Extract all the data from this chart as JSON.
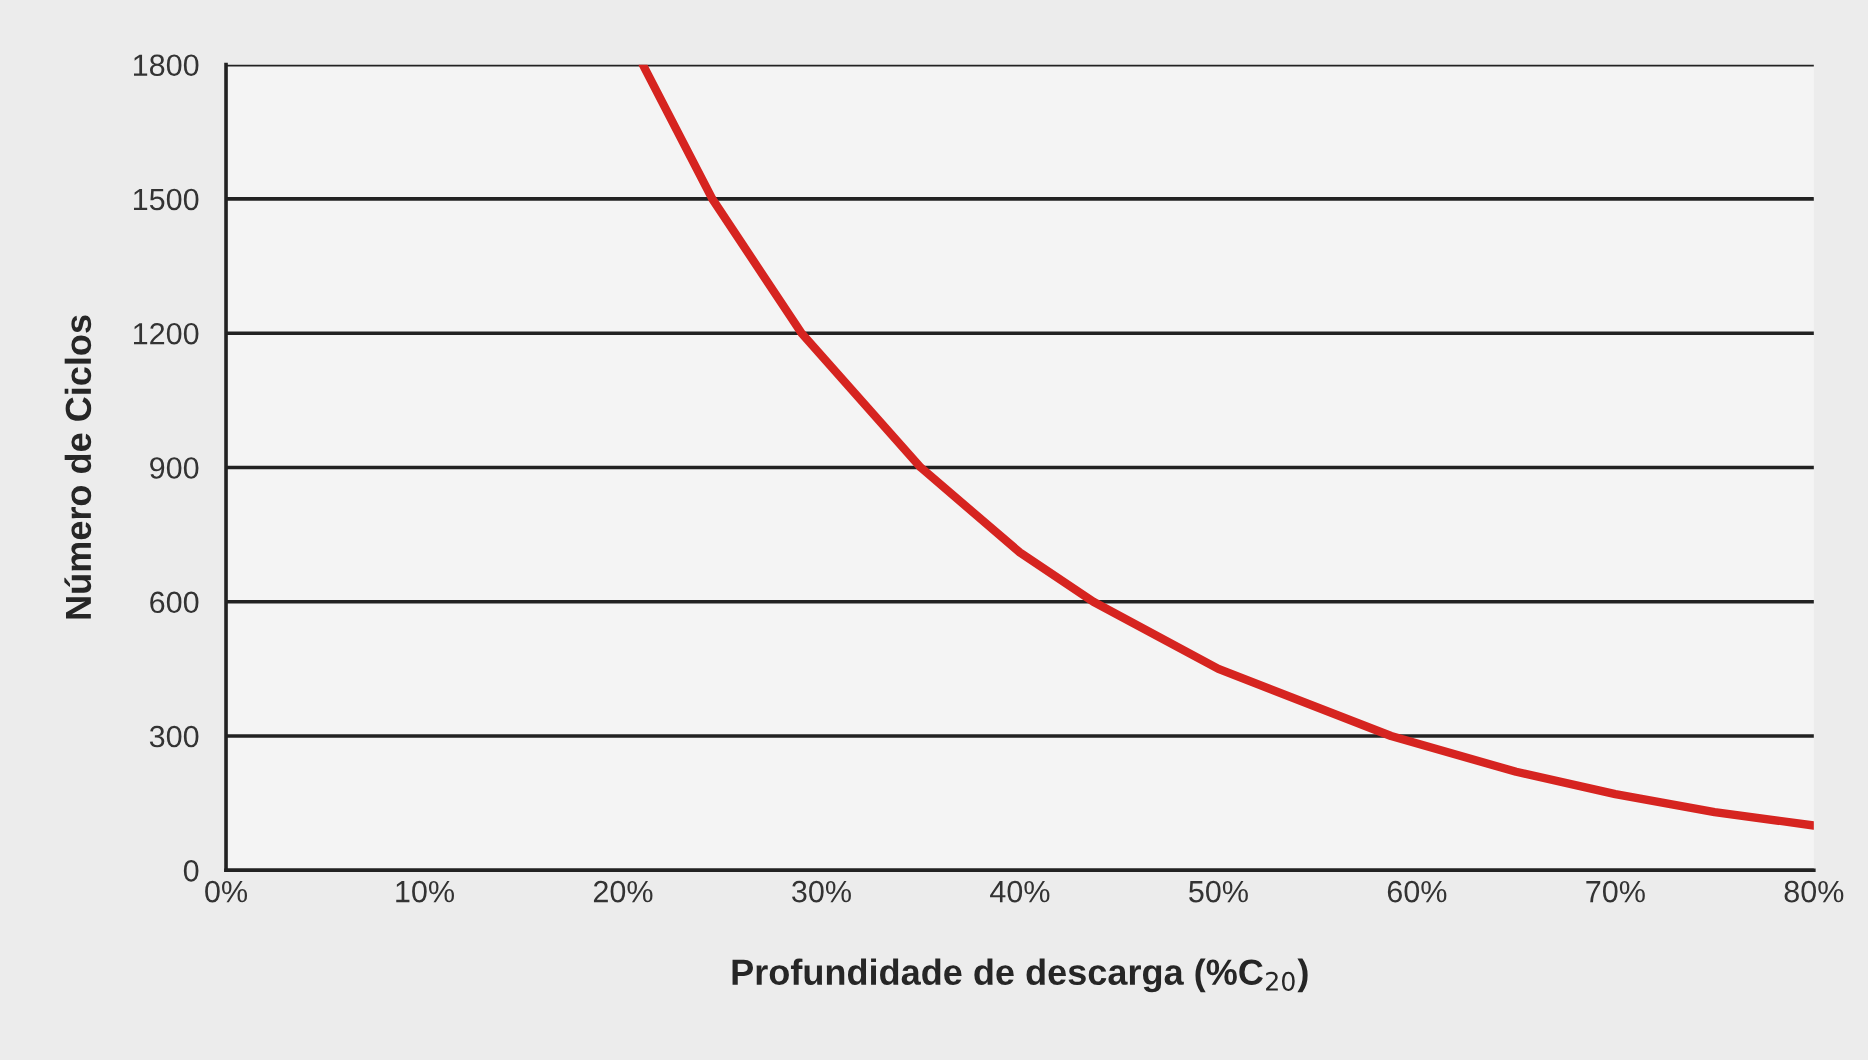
{
  "chart_data": {
    "type": "line",
    "xlabel": "Profundidade de descarga (%C$_{20}$)",
    "ylabel": "Número de Ciclos",
    "x": [
      21,
      24.5,
      29,
      35,
      40,
      43.7,
      50,
      58.7,
      65,
      70,
      75,
      80
    ],
    "series": [
      {
        "color": "#d62420",
        "values": [
          1800,
          1500,
          1200,
          900,
          710,
          600,
          450,
          300,
          220,
          170,
          130,
          100
        ]
      }
    ],
    "xlim": [
      0,
      80
    ],
    "ylim": [
      0,
      1800
    ],
    "xticks": [
      {
        "value": 0,
        "label": "0%"
      },
      {
        "value": 10,
        "label": "10%"
      },
      {
        "value": 20,
        "label": "20%"
      },
      {
        "value": 30,
        "label": "30%"
      },
      {
        "value": 40,
        "label": "40%"
      },
      {
        "value": 50,
        "label": "50%"
      },
      {
        "value": 60,
        "label": "60%"
      },
      {
        "value": 70,
        "label": "70%"
      },
      {
        "value": 80,
        "label": "80%"
      }
    ],
    "yticks": [
      0,
      300,
      600,
      900,
      1200,
      1500,
      1800
    ],
    "grid": "y",
    "marker": "none",
    "line_style": "solid"
  }
}
